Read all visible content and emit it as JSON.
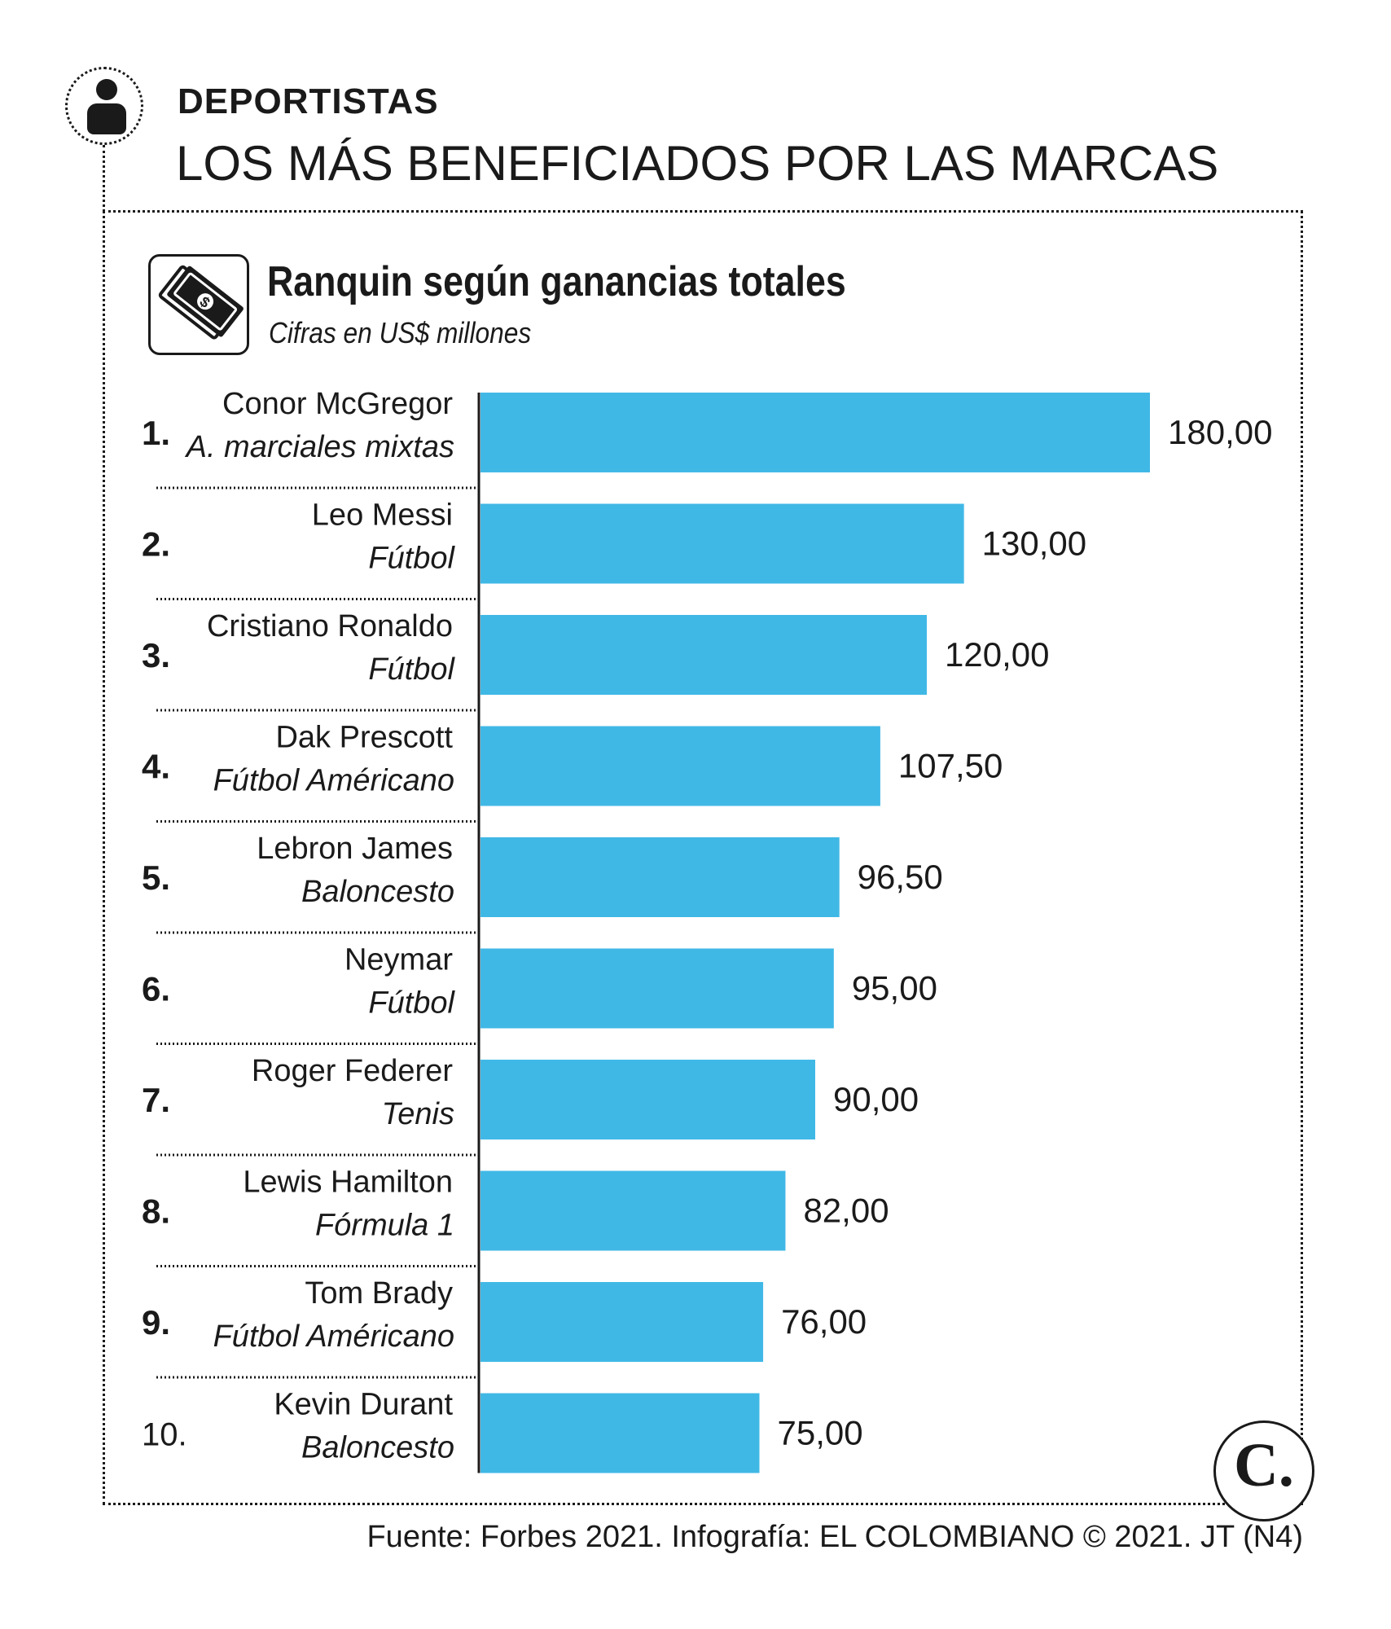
{
  "header": {
    "kicker": "DEPORTISTAS",
    "headline": "LOS MÁS BENEFICIADOS POR LAS MARCAS"
  },
  "chart_data": {
    "type": "bar",
    "orientation": "horizontal",
    "title": "Ranquin según ganancias totales",
    "subtitle": "Cifras en US$ millones",
    "categories": [
      "Conor McGregor",
      "Leo Messi",
      "Cristiano Ronaldo",
      "Dak Prescott",
      "Lebron James",
      "Neymar",
      "Roger Federer",
      "Lewis Hamilton",
      "Tom Brady",
      "Kevin Durant"
    ],
    "sports": [
      "A. marciales mixtas",
      "Fútbol",
      "Fútbol",
      "Fútbol Américano",
      "Baloncesto",
      "Fútbol",
      "Tenis",
      "Fórmula 1",
      "Fútbol Américano",
      "Baloncesto"
    ],
    "ranks": [
      "1.",
      "2.",
      "3.",
      "4.",
      "5.",
      "6.",
      "7.",
      "8.",
      "9.",
      "10."
    ],
    "values": [
      180.0,
      130.0,
      120.0,
      107.5,
      96.5,
      95.0,
      90.0,
      82.0,
      76.0,
      75.0
    ],
    "value_labels": [
      "180,00",
      "130,00",
      "120,00",
      "107,50",
      "96,50",
      "95,00",
      "90,00",
      "82,00",
      "76,00",
      "75,00"
    ],
    "xlim": [
      0,
      180
    ],
    "bar_color": "#40b8e6",
    "grid": false,
    "legend": "none"
  },
  "source": "Fuente: Forbes 2021. Infografía: EL COLOMBIANO © 2021. JT (N4)",
  "logo_text": "C."
}
